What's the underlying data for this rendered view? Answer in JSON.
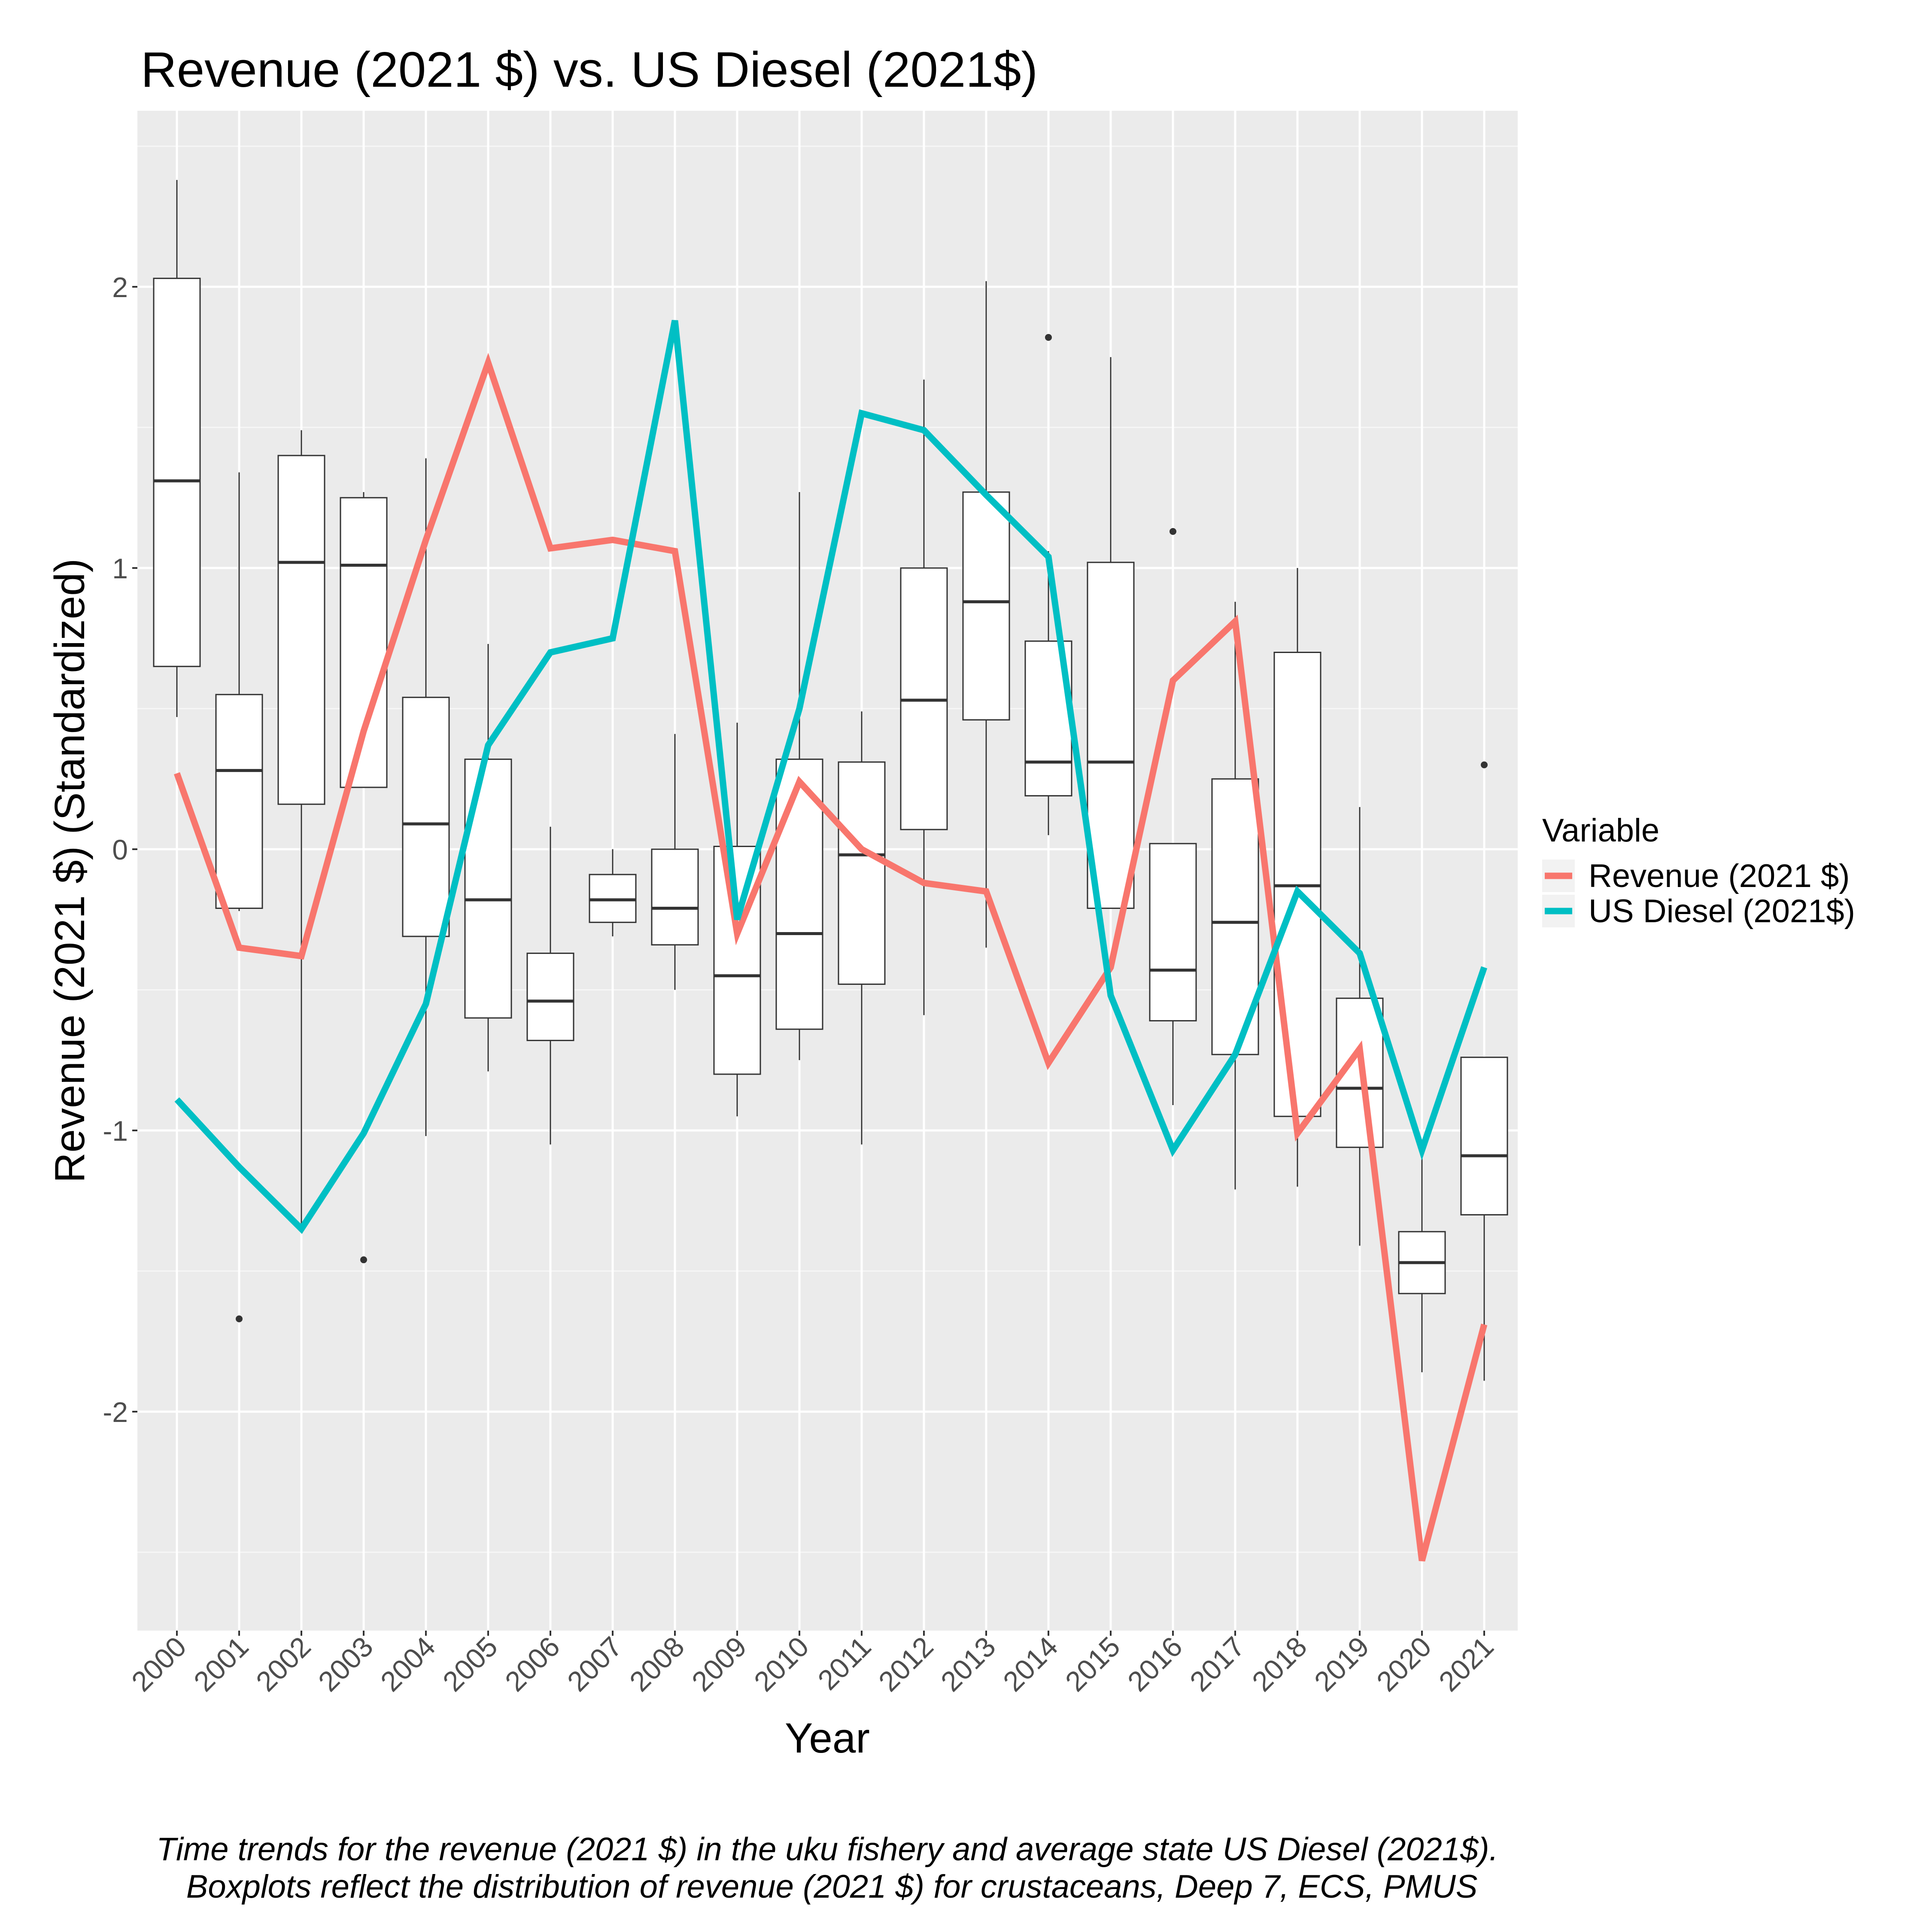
{
  "chart_data": {
    "type": "line",
    "title": "Revenue (2021 $) vs. US Diesel (2021$)",
    "xlabel": "Year",
    "ylabel": "Revenue (2021 $) (Standardized)",
    "ylim": [
      -2.75,
      2.6
    ],
    "yticks": [
      -2,
      -1,
      0,
      1,
      2
    ],
    "yticklabels": [
      "-2",
      "-1",
      "0",
      "1",
      "2"
    ],
    "grid": true,
    "legend": {
      "title": "Variable",
      "position": "right"
    },
    "categories": [
      "2000",
      "2001",
      "2002",
      "2003",
      "2004",
      "2005",
      "2006",
      "2007",
      "2008",
      "2009",
      "2010",
      "2011",
      "2012",
      "2013",
      "2014",
      "2015",
      "2016",
      "2017",
      "2018",
      "2019",
      "2020",
      "2021"
    ],
    "series": [
      {
        "name": "Revenue (2021 $)",
        "color": "#F8766D",
        "values": [
          0.27,
          -0.35,
          -0.38,
          0.42,
          1.1,
          1.73,
          1.07,
          1.1,
          1.06,
          -0.3,
          0.24,
          0.0,
          -0.12,
          -0.15,
          -0.76,
          -0.42,
          0.6,
          0.81,
          -1.01,
          -0.71,
          -2.53,
          -1.69
        ]
      },
      {
        "name": "US Diesel (2021$)",
        "color": "#00BFC4",
        "values": [
          -0.89,
          -1.13,
          -1.35,
          -1.01,
          -0.55,
          0.37,
          0.7,
          0.75,
          1.88,
          -0.25,
          0.5,
          1.55,
          1.49,
          1.26,
          1.04,
          -0.52,
          -1.07,
          -0.73,
          -0.15,
          -0.37,
          -1.07,
          -0.42
        ]
      }
    ],
    "boxplots": [
      {
        "x": "2000",
        "min": 0.47,
        "q1": 0.65,
        "median": 1.31,
        "q3": 2.03,
        "max": 2.38,
        "outliers": []
      },
      {
        "x": "2001",
        "min": -0.22,
        "q1": -0.21,
        "median": 0.28,
        "q3": 0.55,
        "max": 1.34,
        "outliers": [
          -1.67
        ]
      },
      {
        "x": "2002",
        "min": -1.36,
        "q1": 0.16,
        "median": 1.02,
        "q3": 1.4,
        "max": 1.49,
        "outliers": []
      },
      {
        "x": "2003",
        "min": 0.22,
        "q1": 0.22,
        "median": 1.01,
        "q3": 1.25,
        "max": 1.27,
        "outliers": [
          -1.46
        ]
      },
      {
        "x": "2004",
        "min": -1.02,
        "q1": -0.31,
        "median": 0.09,
        "q3": 0.54,
        "max": 1.39,
        "outliers": []
      },
      {
        "x": "2005",
        "min": -0.79,
        "q1": -0.6,
        "median": -0.18,
        "q3": 0.32,
        "max": 0.73,
        "outliers": []
      },
      {
        "x": "2006",
        "min": -1.05,
        "q1": -0.68,
        "median": -0.54,
        "q3": -0.37,
        "max": 0.08,
        "outliers": []
      },
      {
        "x": "2007",
        "min": -0.31,
        "q1": -0.26,
        "median": -0.18,
        "q3": -0.09,
        "max": 0.0,
        "outliers": []
      },
      {
        "x": "2008",
        "min": -0.5,
        "q1": -0.34,
        "median": -0.21,
        "q3": 0.0,
        "max": 0.41,
        "outliers": []
      },
      {
        "x": "2009",
        "min": -0.95,
        "q1": -0.8,
        "median": -0.45,
        "q3": 0.01,
        "max": 0.45,
        "outliers": []
      },
      {
        "x": "2010",
        "min": -0.75,
        "q1": -0.64,
        "median": -0.3,
        "q3": 0.32,
        "max": 1.27,
        "outliers": []
      },
      {
        "x": "2011",
        "min": -1.05,
        "q1": -0.48,
        "median": -0.02,
        "q3": 0.31,
        "max": 0.49,
        "outliers": []
      },
      {
        "x": "2012",
        "min": -0.59,
        "q1": 0.07,
        "median": 0.53,
        "q3": 1.0,
        "max": 1.67,
        "outliers": []
      },
      {
        "x": "2013",
        "min": -0.35,
        "q1": 0.46,
        "median": 0.88,
        "q3": 1.27,
        "max": 2.02,
        "outliers": []
      },
      {
        "x": "2014",
        "min": 0.05,
        "q1": 0.19,
        "median": 0.31,
        "q3": 0.74,
        "max": 1.06,
        "outliers": [
          1.82
        ]
      },
      {
        "x": "2015",
        "min": -0.21,
        "q1": -0.21,
        "median": 0.31,
        "q3": 1.02,
        "max": 1.75,
        "outliers": []
      },
      {
        "x": "2016",
        "min": -0.91,
        "q1": -0.61,
        "median": -0.43,
        "q3": 0.02,
        "max": 0.02,
        "outliers": [
          1.13
        ]
      },
      {
        "x": "2017",
        "min": -1.21,
        "q1": -0.73,
        "median": -0.26,
        "q3": 0.25,
        "max": 0.88,
        "outliers": []
      },
      {
        "x": "2018",
        "min": -1.2,
        "q1": -0.95,
        "median": -0.13,
        "q3": 0.7,
        "max": 1.0,
        "outliers": []
      },
      {
        "x": "2019",
        "min": -1.41,
        "q1": -1.06,
        "median": -0.85,
        "q3": -0.53,
        "max": 0.15,
        "outliers": []
      },
      {
        "x": "2020",
        "min": -1.86,
        "q1": -1.58,
        "median": -1.47,
        "q3": -1.36,
        "max": -1.07,
        "outliers": []
      },
      {
        "x": "2021",
        "min": -1.89,
        "q1": -1.3,
        "median": -1.09,
        "q3": -0.74,
        "max": -0.74,
        "outliers": [
          0.3
        ]
      }
    ],
    "caption": [
      "Time trends for the revenue (2021 $) in the uku fishery and average state US Diesel (2021$).",
      " Boxplots reflect the distribution of revenue (2021 $) for crustaceans, Deep 7, ECS, PMUS"
    ]
  }
}
